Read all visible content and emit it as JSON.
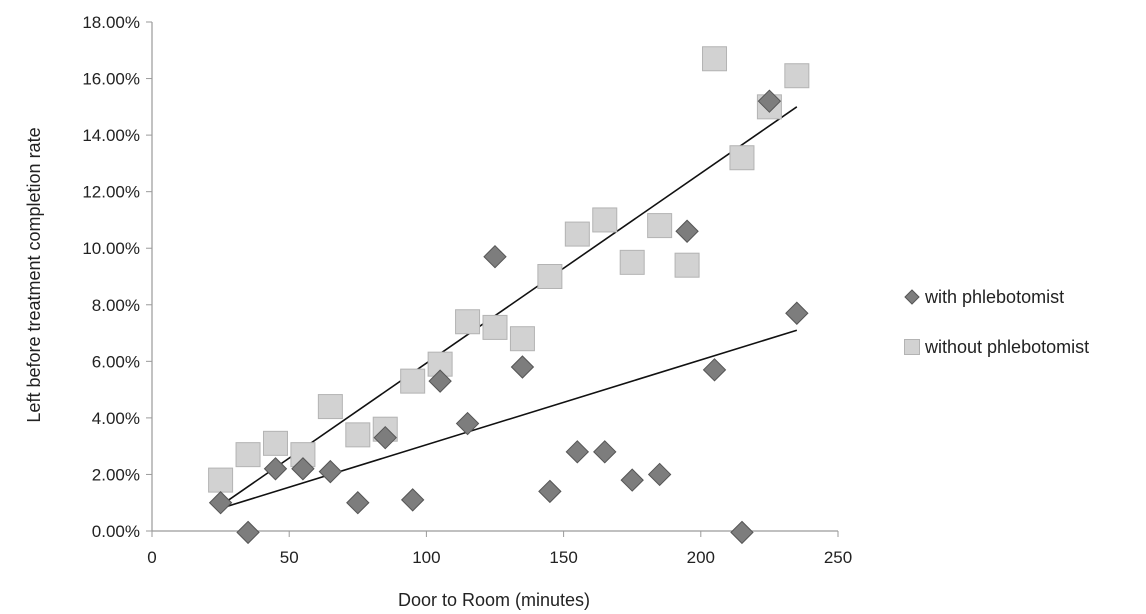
{
  "chart_data": {
    "type": "scatter",
    "xlabel": "Door to Room (minutes)",
    "ylabel": "Left before treatment completion rate",
    "xlim": [
      0,
      250
    ],
    "ylim": [
      0,
      0.18
    ],
    "x_ticks": [
      "0",
      "50",
      "100",
      "150",
      "200",
      "250"
    ],
    "y_ticks": [
      "0.00%",
      "2.00%",
      "4.00%",
      "6.00%",
      "8.00%",
      "10.00%",
      "12.00%",
      "14.00%",
      "16.00%",
      "18.00%"
    ],
    "grid": false,
    "legend_position": "right",
    "series": [
      {
        "name": "with phlebotomist",
        "marker": "diamond",
        "color": "#7a7a7a",
        "points": [
          [
            25,
            0.01
          ],
          [
            35,
            -0.0005
          ],
          [
            45,
            0.022
          ],
          [
            55,
            0.022
          ],
          [
            65,
            0.021
          ],
          [
            75,
            0.01
          ],
          [
            85,
            0.033
          ],
          [
            95,
            0.011
          ],
          [
            105,
            0.053
          ],
          [
            115,
            0.038
          ],
          [
            125,
            0.097
          ],
          [
            135,
            0.058
          ],
          [
            145,
            0.014
          ],
          [
            155,
            0.028
          ],
          [
            165,
            0.028
          ],
          [
            175,
            0.018
          ],
          [
            185,
            0.02
          ],
          [
            195,
            0.106
          ],
          [
            205,
            0.057
          ],
          [
            215,
            -0.0005
          ],
          [
            225,
            0.152
          ],
          [
            235,
            0.077
          ]
        ],
        "trendline": [
          [
            25,
            0.008
          ],
          [
            235,
            0.071
          ]
        ]
      },
      {
        "name": "without phlebotomist",
        "marker": "square",
        "color": "#cfcfcf",
        "points": [
          [
            25,
            0.018
          ],
          [
            35,
            0.027
          ],
          [
            45,
            0.031
          ],
          [
            55,
            0.027
          ],
          [
            65,
            0.044
          ],
          [
            75,
            0.034
          ],
          [
            85,
            0.036
          ],
          [
            95,
            0.053
          ],
          [
            105,
            0.059
          ],
          [
            115,
            0.074
          ],
          [
            125,
            0.072
          ],
          [
            135,
            0.068
          ],
          [
            145,
            0.09
          ],
          [
            155,
            0.105
          ],
          [
            165,
            0.11
          ],
          [
            175,
            0.095
          ],
          [
            185,
            0.108
          ],
          [
            195,
            0.094
          ],
          [
            205,
            0.167
          ],
          [
            215,
            0.132
          ],
          [
            225,
            0.15
          ],
          [
            235,
            0.161
          ]
        ],
        "trendline": [
          [
            25,
            0.009
          ],
          [
            235,
            0.15
          ]
        ]
      }
    ]
  }
}
